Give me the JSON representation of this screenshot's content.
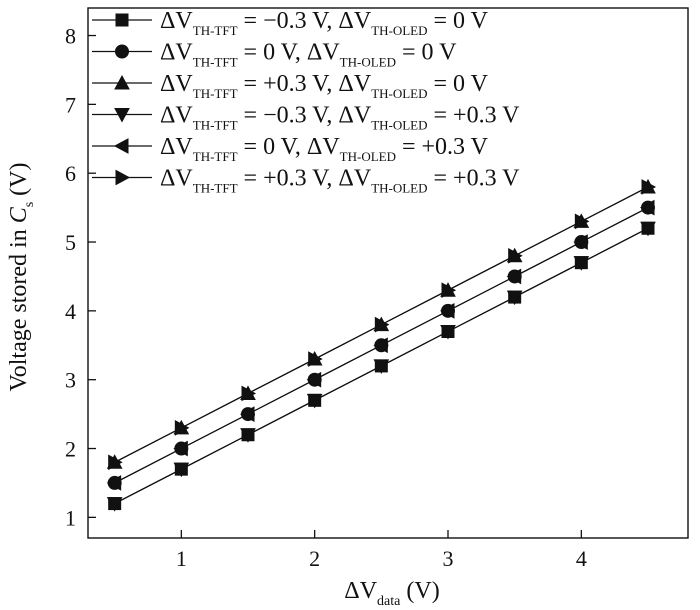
{
  "chart_data": {
    "type": "line",
    "xlabel": {
      "symbol": "ΔV",
      "sub": "data",
      "unit": " (V)"
    },
    "ylabel": {
      "prefix": "Voltage stored in ",
      "symbol": "C",
      "sub": "s",
      "unit": " (V)"
    },
    "xlim": [
      0.3,
      4.8
    ],
    "ylim": [
      0.7,
      8.4
    ],
    "xticks": [
      1,
      2,
      3,
      4
    ],
    "yticks": [
      1,
      2,
      3,
      4,
      5,
      6,
      7,
      8
    ],
    "grid": false,
    "legend_position": "top-left",
    "x": [
      0.5,
      1.0,
      1.5,
      2.0,
      2.5,
      3.0,
      3.5,
      4.0,
      4.5
    ],
    "series": [
      {
        "marker": "square",
        "legend": [
          {
            "t": "ΔV"
          },
          {
            "t": "TH-TFT",
            "sub": true
          },
          {
            "t": " = −0.3 V, ΔV"
          },
          {
            "t": "TH-OLED",
            "sub": true
          },
          {
            "t": " = 0 V"
          }
        ],
        "values": [
          1.2,
          1.7,
          2.2,
          2.7,
          3.2,
          3.7,
          4.2,
          4.7,
          5.2
        ]
      },
      {
        "marker": "circle",
        "legend": [
          {
            "t": "ΔV"
          },
          {
            "t": "TH-TFT",
            "sub": true
          },
          {
            "t": " = 0 V, ΔV"
          },
          {
            "t": "TH-OLED",
            "sub": true
          },
          {
            "t": " = 0 V"
          }
        ],
        "values": [
          1.5,
          2.0,
          2.5,
          3.0,
          3.5,
          4.0,
          4.5,
          5.0,
          5.5
        ]
      },
      {
        "marker": "triangle-up",
        "legend": [
          {
            "t": "ΔV"
          },
          {
            "t": "TH-TFT",
            "sub": true
          },
          {
            "t": " = +0.3 V, ΔV"
          },
          {
            "t": "TH-OLED",
            "sub": true
          },
          {
            "t": " = 0 V"
          }
        ],
        "values": [
          1.8,
          2.3,
          2.8,
          3.3,
          3.8,
          4.3,
          4.8,
          5.3,
          5.8
        ]
      },
      {
        "marker": "triangle-down",
        "legend": [
          {
            "t": "ΔV"
          },
          {
            "t": "TH-TFT",
            "sub": true
          },
          {
            "t": " = −0.3 V, ΔV"
          },
          {
            "t": "TH-OLED",
            "sub": true
          },
          {
            "t": " = +0.3 V"
          }
        ],
        "values": [
          1.2,
          1.7,
          2.2,
          2.7,
          3.2,
          3.7,
          4.2,
          4.7,
          5.2
        ]
      },
      {
        "marker": "triangle-left",
        "legend": [
          {
            "t": "ΔV"
          },
          {
            "t": "TH-TFT",
            "sub": true
          },
          {
            "t": " = 0 V, ΔV"
          },
          {
            "t": "TH-OLED",
            "sub": true
          },
          {
            "t": " = +0.3 V"
          }
        ],
        "values": [
          1.5,
          2.0,
          2.5,
          3.0,
          3.5,
          4.0,
          4.5,
          5.0,
          5.5
        ]
      },
      {
        "marker": "triangle-right",
        "legend": [
          {
            "t": "ΔV"
          },
          {
            "t": "TH-TFT",
            "sub": true
          },
          {
            "t": " = +0.3 V, ΔV"
          },
          {
            "t": "TH-OLED",
            "sub": true
          },
          {
            "t": " = +0.3 V"
          }
        ],
        "values": [
          1.8,
          2.3,
          2.8,
          3.3,
          3.8,
          4.3,
          4.8,
          5.3,
          5.8
        ]
      }
    ]
  }
}
